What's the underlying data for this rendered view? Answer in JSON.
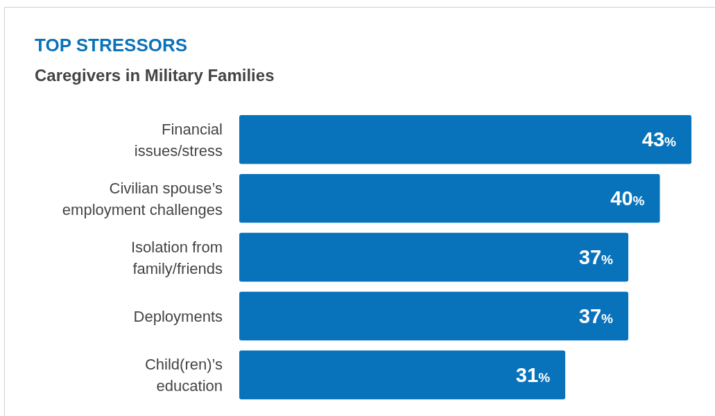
{
  "chart_data": {
    "type": "bar",
    "orientation": "horizontal",
    "title": "TOP STRESSORS",
    "subtitle": "Caregivers in Military Families",
    "categories": [
      "Financial\nissues/stress",
      "Civilian spouse’s\nemployment challenges",
      "Isolation from\nfamily/friends",
      "Deployments",
      "Child(ren)’s\neducation"
    ],
    "values": [
      43,
      40,
      37,
      37,
      31
    ],
    "color": "#0873bb",
    "value_labels": [
      "43%",
      "40%",
      "37%",
      "37%",
      "31%"
    ]
  }
}
